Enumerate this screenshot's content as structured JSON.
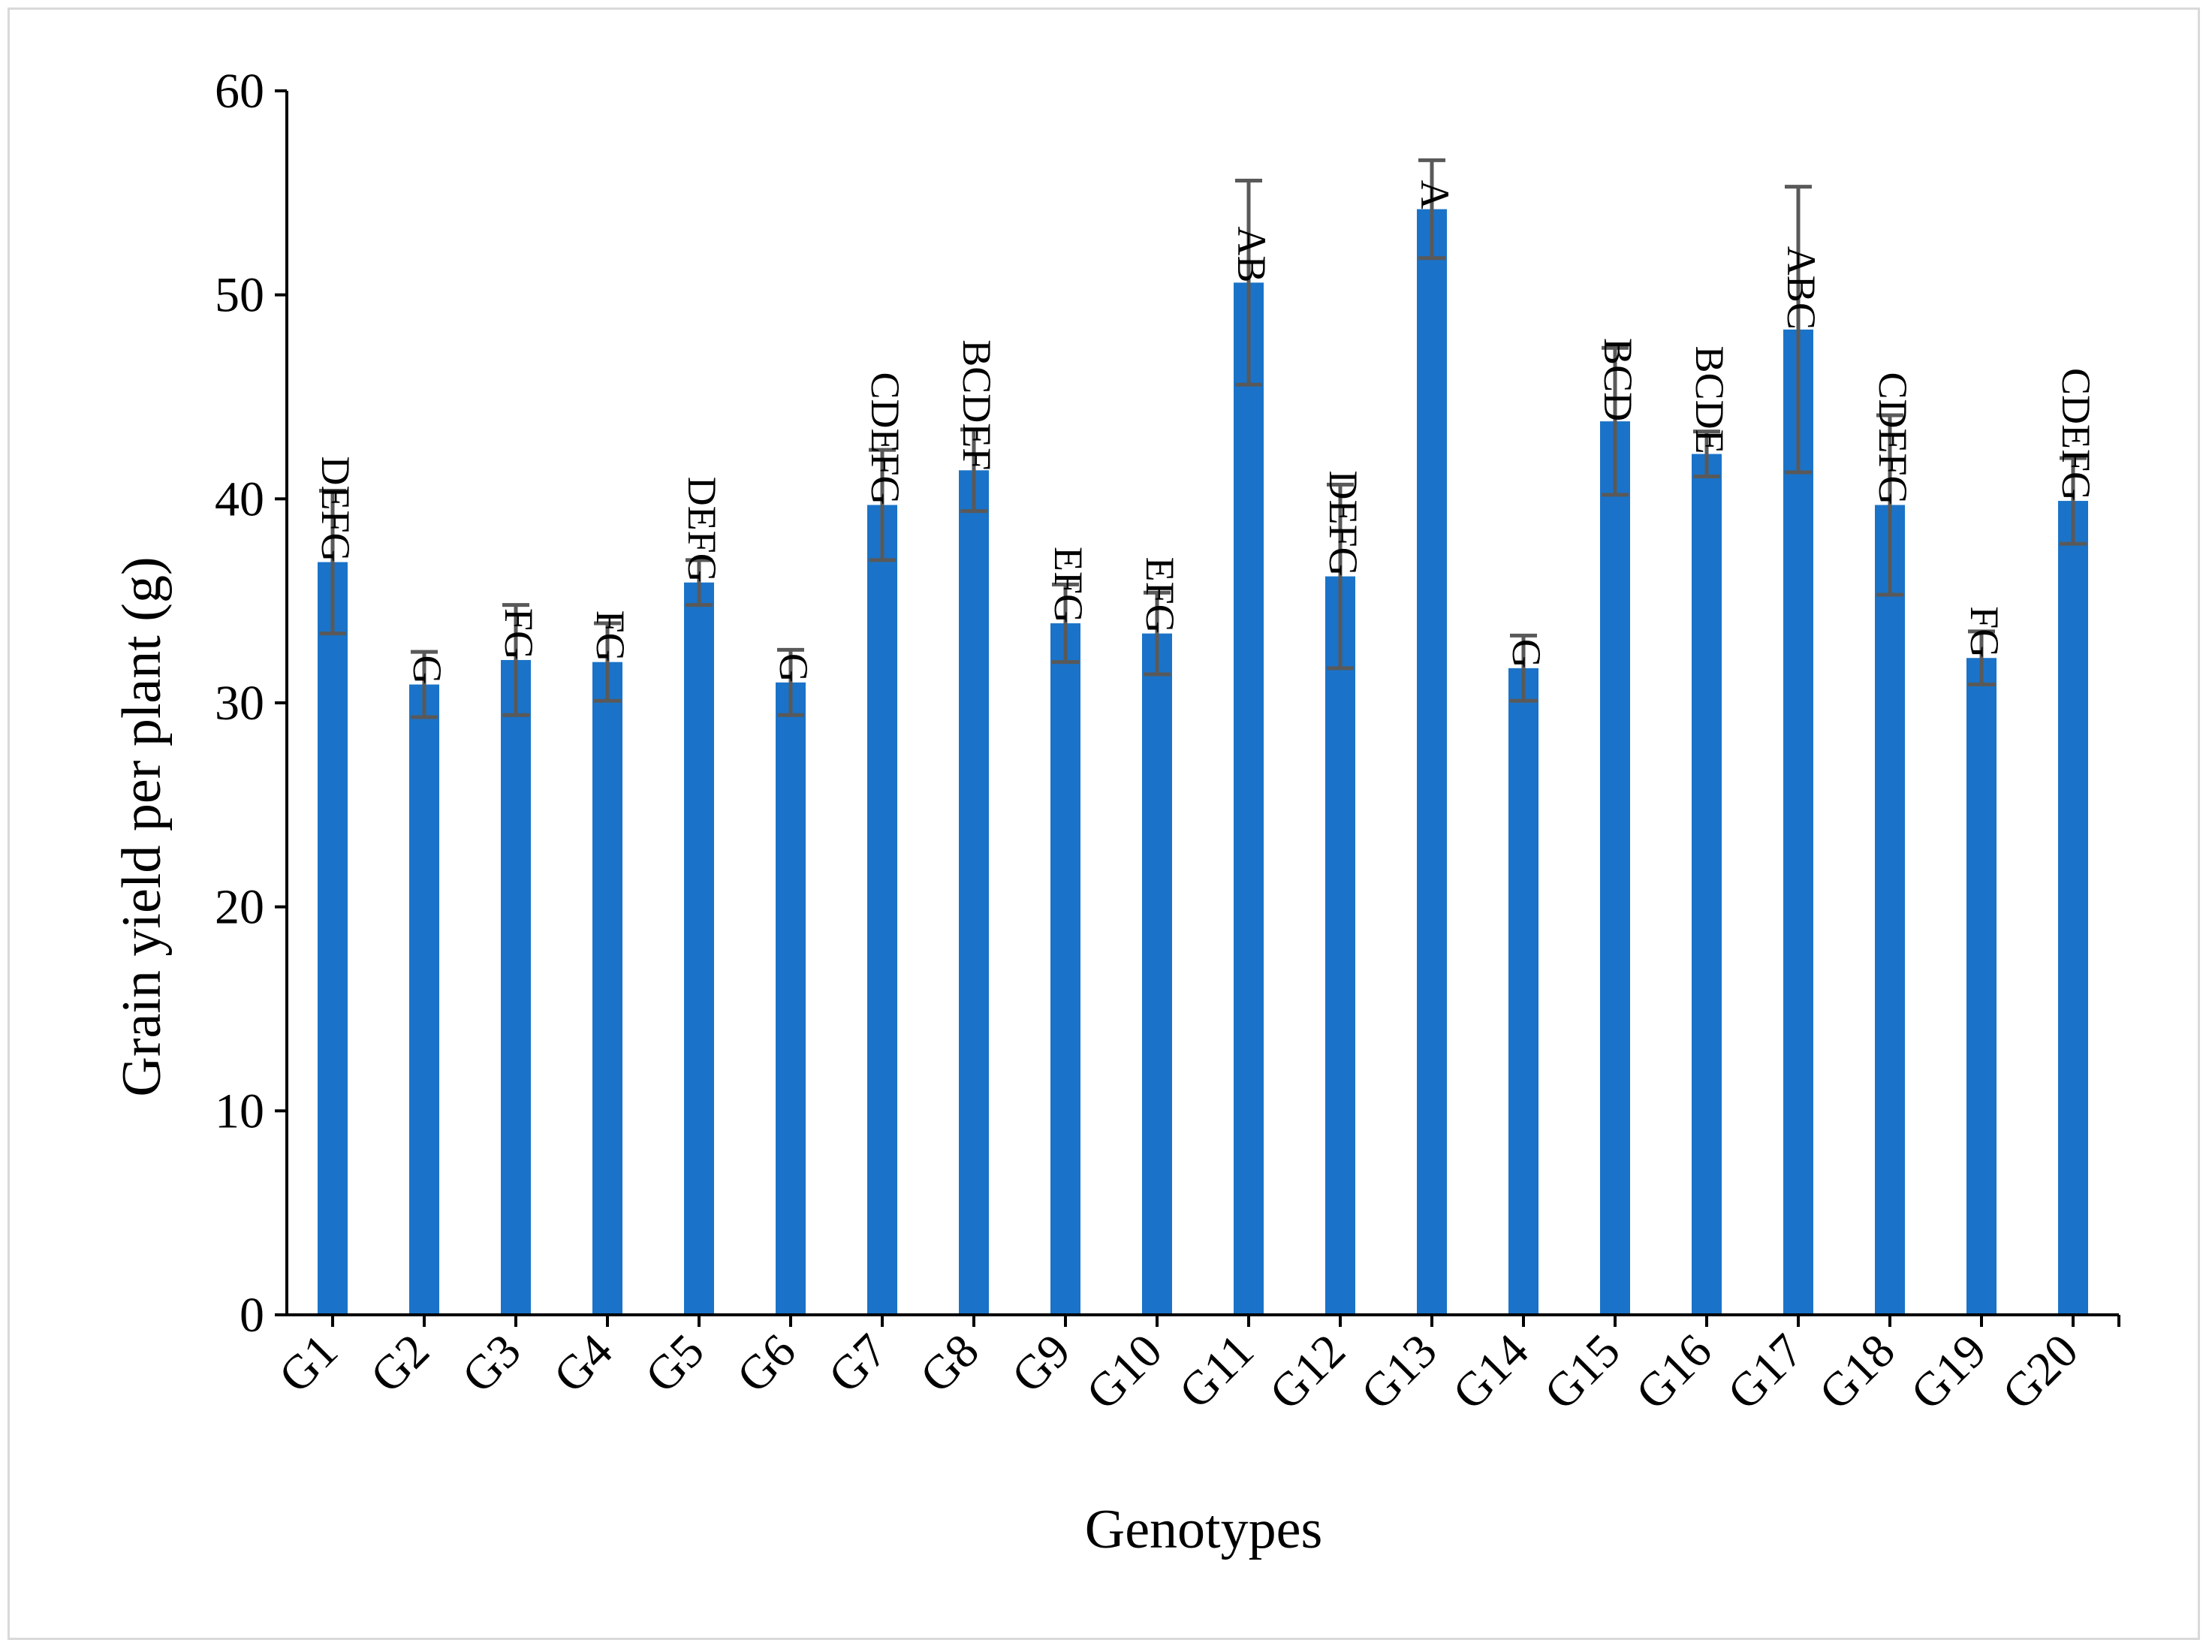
{
  "chart_data": {
    "type": "bar",
    "title": "",
    "xlabel": "Genotypes",
    "ylabel": "Grain yield per plant (g)",
    "ylim": [
      0,
      60
    ],
    "yticks": [
      0,
      10,
      20,
      30,
      40,
      50,
      60
    ],
    "grid": false,
    "bar_color": "#1a73c8",
    "error_color": "#595959",
    "categories": [
      "G1",
      "G2",
      "G3",
      "G4",
      "G5",
      "G6",
      "G7",
      "G8",
      "G9",
      "G10",
      "G11",
      "G12",
      "G13",
      "G14",
      "G15",
      "G16",
      "G17",
      "G18",
      "G19",
      "G20"
    ],
    "values": [
      36.9,
      30.9,
      32.1,
      32.0,
      35.9,
      31.0,
      39.7,
      41.4,
      33.9,
      33.4,
      50.6,
      36.2,
      54.2,
      31.7,
      43.8,
      42.2,
      48.3,
      39.7,
      32.2,
      39.9
    ],
    "errors": [
      3.5,
      1.6,
      2.7,
      1.9,
      1.1,
      1.6,
      2.7,
      2.0,
      1.9,
      2.0,
      5.0,
      4.5,
      2.4,
      1.6,
      3.6,
      1.1,
      7.0,
      4.4,
      1.3,
      2.1
    ],
    "significance": [
      "DEFG",
      "G",
      "FG",
      "FG",
      "DEFG",
      "G",
      "CDEFG",
      "BCDEF",
      "EFG",
      "EFG",
      "AB",
      "DEFG",
      "A",
      "G",
      "BCD",
      "BCDE",
      "ABC",
      "CDEFG",
      "FG",
      "CDEFG"
    ]
  }
}
